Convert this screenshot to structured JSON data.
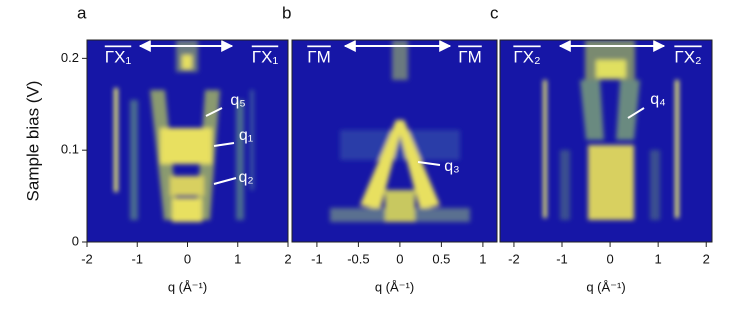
{
  "chart_data": [
    {
      "type": "heatmap",
      "panel": "a",
      "xlabel": "q (Å⁻¹)",
      "ylabel": "Sample bias (V)",
      "xlim": [
        -2,
        2
      ],
      "xticks": [
        -2,
        -1,
        0,
        1,
        2
      ],
      "ylim": [
        0,
        0.22
      ],
      "yticks": [
        0,
        0.1,
        0.2
      ],
      "annotations": [
        "ΓX₁",
        "ΓX₁",
        "q₅",
        "q₁",
        "q₂"
      ]
    },
    {
      "type": "heatmap",
      "panel": "b",
      "xlabel": "q (Å⁻¹)",
      "xlim": [
        -1.3,
        1.17
      ],
      "xticks": [
        -1,
        -0.5,
        0,
        0.5,
        1
      ],
      "ylim": [
        0,
        0.22
      ],
      "annotations": [
        "ΓM",
        "ΓM",
        "q₃"
      ]
    },
    {
      "type": "heatmap",
      "panel": "c",
      "xlabel": "q (Å⁻¹)",
      "xlim": [
        -2.29,
        2.12
      ],
      "xticks": [
        -2,
        -1,
        0,
        1,
        2
      ],
      "ylim": [
        0,
        0.22
      ],
      "annotations": [
        "ΓX₂",
        "ΓX₂",
        "q₄"
      ]
    }
  ]
}
